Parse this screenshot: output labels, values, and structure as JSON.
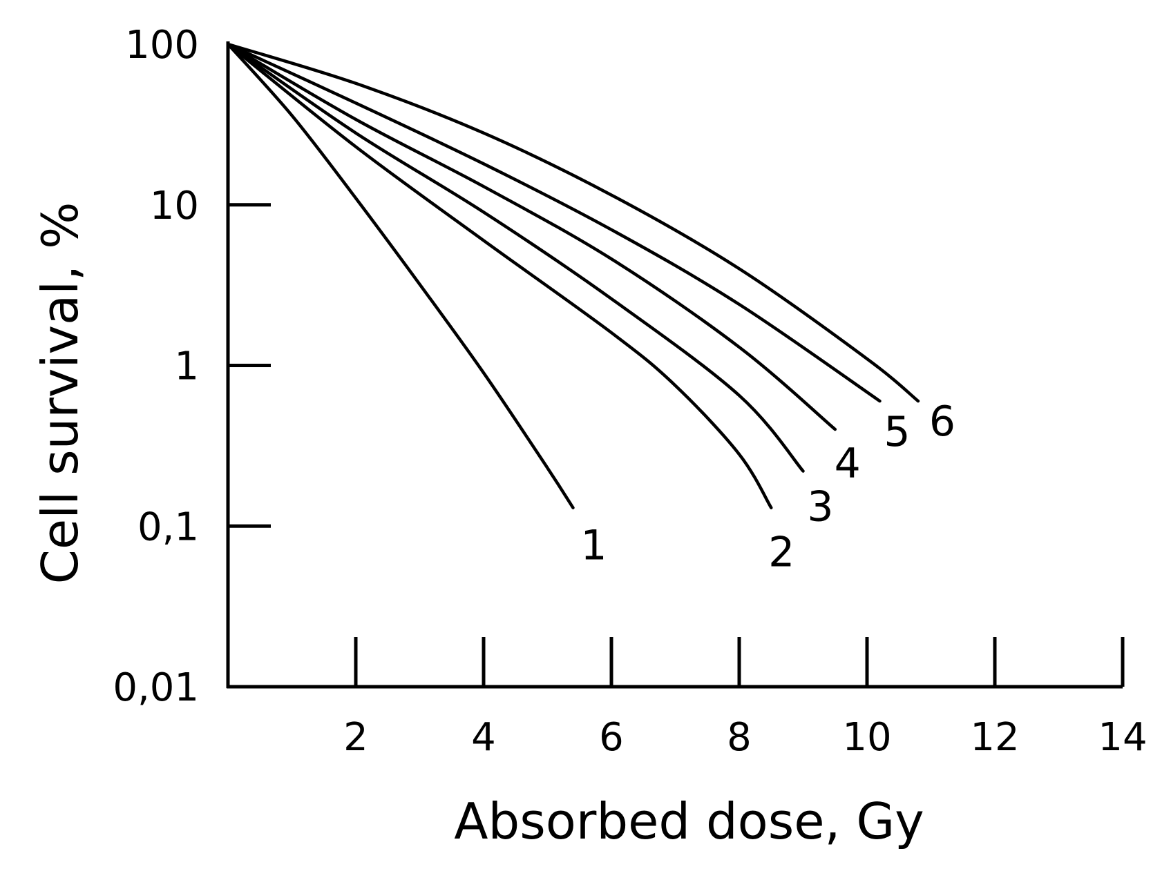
{
  "chart_data": {
    "type": "line",
    "title": "",
    "xlabel": "Absorbed dose, Gy",
    "ylabel": "Cell survival, %",
    "xlim": [
      0,
      14
    ],
    "ylim": [
      0.01,
      100
    ],
    "yscale": "log",
    "grid": false,
    "legend": "none (curves labeled directly at their ends)",
    "x_ticks": [
      "2",
      "4",
      "6",
      "8",
      "10",
      "12",
      "14"
    ],
    "y_ticks": [
      "100",
      "10",
      "1",
      "0,1",
      "0,01"
    ],
    "series": [
      {
        "name": "1",
        "x": [
          0,
          1,
          2,
          3,
          4,
          5,
          5.4
        ],
        "y": [
          100,
          36,
          11,
          3.2,
          0.9,
          0.23,
          0.13
        ]
      },
      {
        "name": "2",
        "x": [
          0,
          2,
          4,
          6,
          7,
          8,
          8.5
        ],
        "y": [
          100,
          23,
          6.0,
          1.6,
          0.75,
          0.28,
          0.13
        ]
      },
      {
        "name": "3",
        "x": [
          0,
          2,
          4,
          6,
          8,
          9
        ],
        "y": [
          100,
          28,
          9.0,
          2.6,
          0.65,
          0.22
        ]
      },
      {
        "name": "4",
        "x": [
          0,
          2,
          4,
          6,
          8,
          9.5
        ],
        "y": [
          100,
          34,
          13,
          4.6,
          1.3,
          0.4
        ]
      },
      {
        "name": "5",
        "x": [
          0,
          2,
          4,
          6,
          8,
          10.2
        ],
        "y": [
          100,
          43,
          18,
          7.0,
          2.4,
          0.6
        ]
      },
      {
        "name": "6",
        "x": [
          0,
          2,
          4,
          6,
          8,
          10,
          10.8
        ],
        "y": [
          100,
          57,
          28,
          11.5,
          4.0,
          1.1,
          0.6
        ]
      }
    ]
  }
}
